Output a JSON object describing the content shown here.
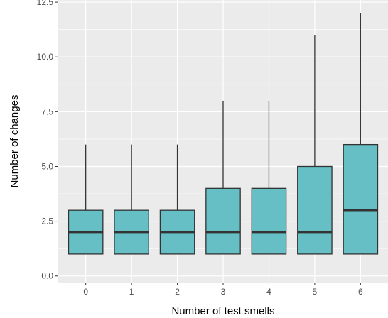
{
  "chart_data": {
    "type": "boxplot",
    "xlabel": "Number of test smells",
    "ylabel": "Number of changes",
    "categories": [
      "0",
      "1",
      "2",
      "3",
      "4",
      "5",
      "6"
    ],
    "ylim": [
      -0.3,
      12.6
    ],
    "yticks": [
      0.0,
      2.5,
      5.0,
      7.5,
      10.0,
      12.5
    ],
    "ytick_labels": [
      "0.0",
      "2.5",
      "5.0",
      "7.5",
      "10.0",
      "12.5"
    ],
    "boxes": [
      {
        "category": "0",
        "whisker_low": 1,
        "q1": 1,
        "median": 2,
        "q3": 3,
        "whisker_high": 6
      },
      {
        "category": "1",
        "whisker_low": 1,
        "q1": 1,
        "median": 2,
        "q3": 3,
        "whisker_high": 6
      },
      {
        "category": "2",
        "whisker_low": 1,
        "q1": 1,
        "median": 2,
        "q3": 3,
        "whisker_high": 6
      },
      {
        "category": "3",
        "whisker_low": 1,
        "q1": 1,
        "median": 2,
        "q3": 4,
        "whisker_high": 8
      },
      {
        "category": "4",
        "whisker_low": 1,
        "q1": 1,
        "median": 2,
        "q3": 4,
        "whisker_high": 8
      },
      {
        "category": "5",
        "whisker_low": 1,
        "q1": 1,
        "median": 2,
        "q3": 5,
        "whisker_high": 11
      },
      {
        "category": "6",
        "whisker_low": 1,
        "q1": 1,
        "median": 3,
        "q3": 6,
        "whisker_high": 12
      }
    ],
    "fill_color": "#66bfc4",
    "line_color": "#333333",
    "panel_color": "#ebebeb",
    "grid": true,
    "legend": "none"
  }
}
